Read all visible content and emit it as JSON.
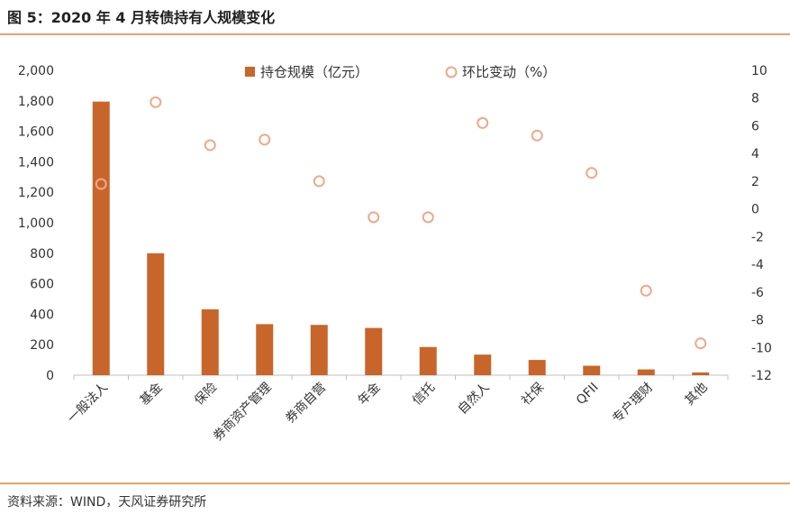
{
  "title": "图 5：2020 年 4 月转债持有人规模变化",
  "source": "资料来源：WIND，天风证券研究所",
  "colors": {
    "bar": "#c8652a",
    "point": "#f0a888",
    "rule": "#e8a070"
  },
  "chart_data": {
    "type": "bar",
    "categories": [
      "一般法人",
      "基金",
      "保险",
      "券商资产管理",
      "券商自营",
      "年金",
      "信托",
      "自然人",
      "社保",
      "QFII",
      "专户理财",
      "其他"
    ],
    "series": [
      {
        "name": "持仓规模（亿元）",
        "type": "bar",
        "axis": "left",
        "values": [
          1795,
          800,
          432,
          335,
          330,
          310,
          185,
          135,
          100,
          62,
          38,
          18
        ]
      },
      {
        "name": "环比变动（%）",
        "type": "scatter",
        "axis": "right",
        "values": [
          1.8,
          7.7,
          4.6,
          5.0,
          2.0,
          -0.6,
          -0.6,
          6.2,
          5.3,
          2.6,
          -5.9,
          -9.7
        ]
      }
    ],
    "y_left": {
      "min": 0,
      "max": 2000,
      "ticks": [
        0,
        200,
        400,
        600,
        800,
        1000,
        1200,
        1400,
        1600,
        1800,
        2000
      ],
      "tick_labels": [
        "0",
        "200",
        "400",
        "600",
        "800",
        "1,000",
        "1,200",
        "1,400",
        "1,600",
        "1,800",
        "2,000"
      ]
    },
    "y_right": {
      "min": -12,
      "max": 10,
      "ticks": [
        -12,
        -10,
        -8,
        -6,
        -4,
        -2,
        0,
        2,
        4,
        6,
        8,
        10
      ],
      "tick_labels": [
        "-12",
        "-10",
        "-8",
        "-6",
        "-4",
        "-2",
        "0",
        "2",
        "4",
        "6",
        "8",
        "10"
      ]
    },
    "legend": "top-center",
    "grid": false
  }
}
